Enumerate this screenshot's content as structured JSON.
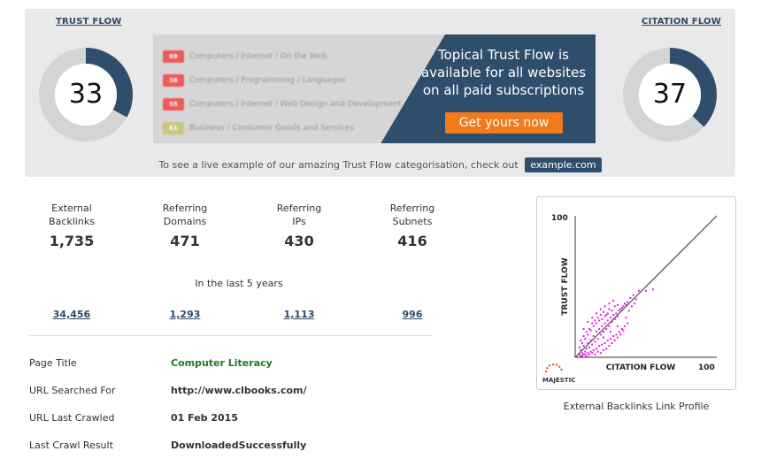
{
  "flow": {
    "trust_label": "TRUST FLOW",
    "trust_value": 33,
    "citation_label": "CITATION FLOW",
    "citation_value": 37,
    "ring_fill_color": "#2e4e6c",
    "ring_track_color": "#d4d4d4"
  },
  "promo": {
    "topics": [
      {
        "score": "69",
        "label": "Computers / Internet / On the Web",
        "color": "#ef5b5b"
      },
      {
        "score": "56",
        "label": "Computers / Programming / Languages",
        "color": "#ef5b5b"
      },
      {
        "score": "55",
        "label": "Computers / Internet / Web Design and Development",
        "color": "#ef5b5b"
      },
      {
        "score": "61",
        "label": "Business / Consumer Goods and Services",
        "color": "#c9c77e"
      }
    ],
    "headline_1": "Topical Trust Flow is",
    "headline_2": "available for all websites",
    "headline_3": "on all paid subscriptions",
    "button_label": "Get yours now"
  },
  "live_example": {
    "text": "To see a live example of our amazing Trust Flow categorisation, check out",
    "link": "example.com"
  },
  "stats": [
    {
      "line1": "External",
      "line2": "Backlinks",
      "value": "1,735",
      "history": "34,456"
    },
    {
      "line1": "Referring",
      "line2": "Domains",
      "value": "471",
      "history": "1,293"
    },
    {
      "line1": "Referring",
      "line2": "IPs",
      "value": "430",
      "history": "1,113"
    },
    {
      "line1": "Referring",
      "line2": "Subnets",
      "value": "416",
      "history": "996"
    }
  ],
  "period_label": "In the last 5 years",
  "info": {
    "page_title_label": "Page Title",
    "page_title_value": "Computer Literacy",
    "url_searched_label": "URL Searched For",
    "url_searched_value": "http://www.clbooks.com/",
    "url_crawled_label": "URL Last Crawled",
    "url_crawled_value": "01 Feb 2015",
    "crawl_result_label": "Last Crawl Result",
    "crawl_result_value": "DownloadedSuccessfully"
  },
  "chart_caption": "External Backlinks Link Profile",
  "chart_data": {
    "type": "scatter",
    "title": "",
    "xlabel": "CITATION FLOW",
    "ylabel": "TRUST FLOW",
    "xlim": [
      0,
      100
    ],
    "ylim": [
      0,
      100
    ],
    "x_tick_labels": [
      "100"
    ],
    "y_tick_labels": [
      "100"
    ],
    "reference_line": {
      "from": [
        0,
        0
      ],
      "to": [
        100,
        100
      ]
    },
    "point_color": "#e020e0",
    "logo_text": "MAJESTIC",
    "points": [
      [
        3,
        2
      ],
      [
        4,
        5
      ],
      [
        5,
        3
      ],
      [
        6,
        8
      ],
      [
        7,
        4
      ],
      [
        8,
        6
      ],
      [
        9,
        10
      ],
      [
        10,
        7
      ],
      [
        11,
        12
      ],
      [
        12,
        9
      ],
      [
        13,
        15
      ],
      [
        14,
        11
      ],
      [
        15,
        18
      ],
      [
        16,
        13
      ],
      [
        17,
        20
      ],
      [
        18,
        16
      ],
      [
        19,
        22
      ],
      [
        20,
        18
      ],
      [
        21,
        24
      ],
      [
        22,
        20
      ],
      [
        23,
        26
      ],
      [
        24,
        22
      ],
      [
        25,
        28
      ],
      [
        26,
        25
      ],
      [
        27,
        30
      ],
      [
        28,
        27
      ],
      [
        29,
        31
      ],
      [
        30,
        29
      ],
      [
        31,
        33
      ],
      [
        32,
        34
      ],
      [
        33,
        35
      ],
      [
        34,
        36
      ],
      [
        35,
        38
      ],
      [
        36,
        37
      ],
      [
        37,
        39
      ],
      [
        39,
        42
      ],
      [
        41,
        44
      ],
      [
        43,
        41
      ],
      [
        45,
        47
      ],
      [
        50,
        47
      ],
      [
        55,
        48
      ],
      [
        4,
        12
      ],
      [
        6,
        15
      ],
      [
        8,
        18
      ],
      [
        10,
        20
      ],
      [
        12,
        24
      ],
      [
        14,
        26
      ],
      [
        16,
        28
      ],
      [
        18,
        30
      ],
      [
        20,
        32
      ],
      [
        22,
        30
      ],
      [
        24,
        34
      ],
      [
        26,
        33
      ],
      [
        28,
        36
      ],
      [
        30,
        37
      ],
      [
        5,
        1
      ],
      [
        7,
        2
      ],
      [
        9,
        3
      ],
      [
        11,
        4
      ],
      [
        13,
        5
      ],
      [
        15,
        6
      ],
      [
        17,
        8
      ],
      [
        19,
        9
      ],
      [
        21,
        10
      ],
      [
        23,
        12
      ],
      [
        25,
        13
      ],
      [
        27,
        15
      ],
      [
        29,
        16
      ],
      [
        31,
        18
      ],
      [
        33,
        20
      ],
      [
        35,
        22
      ],
      [
        37,
        24
      ],
      [
        3,
        7
      ],
      [
        5,
        10
      ],
      [
        7,
        13
      ],
      [
        9,
        16
      ],
      [
        11,
        19
      ],
      [
        13,
        22
      ],
      [
        15,
        24
      ],
      [
        17,
        26
      ],
      [
        19,
        27
      ],
      [
        21,
        29
      ],
      [
        23,
        31
      ],
      [
        4,
        1
      ],
      [
        6,
        2
      ],
      [
        8,
        1
      ],
      [
        10,
        2
      ],
      [
        12,
        3
      ],
      [
        14,
        2
      ],
      [
        16,
        4
      ],
      [
        18,
        3
      ],
      [
        20,
        5
      ],
      [
        22,
        6
      ],
      [
        24,
        8
      ],
      [
        26,
        10
      ],
      [
        28,
        12
      ],
      [
        30,
        14
      ],
      [
        32,
        16
      ],
      [
        34,
        19
      ],
      [
        36,
        28
      ],
      [
        38,
        33
      ],
      [
        40,
        36
      ],
      [
        42,
        38
      ],
      [
        6,
        20
      ],
      [
        9,
        25
      ],
      [
        12,
        28
      ],
      [
        15,
        31
      ],
      [
        18,
        34
      ],
      [
        21,
        36
      ],
      [
        24,
        38
      ],
      [
        27,
        40
      ],
      [
        20,
        14
      ],
      [
        25,
        18
      ],
      [
        30,
        22
      ]
    ]
  }
}
